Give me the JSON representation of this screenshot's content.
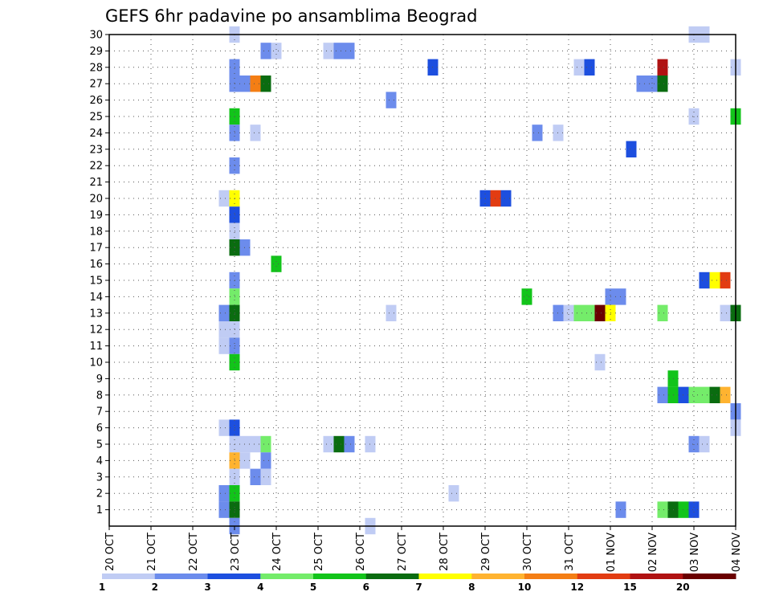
{
  "chart_data": {
    "type": "heatmap",
    "title": "GEFS 6hr padavine po ansamblima Beograd",
    "x_tick_labels": [
      "20 OCT",
      "21 OCT",
      "22 OCT",
      "23 OCT",
      "24 OCT",
      "25 OCT",
      "26 OCT",
      "27 OCT",
      "28 OCT",
      "29 OCT",
      "30 OCT",
      "31 OCT",
      "01 NOV",
      "02 NOV",
      "03 NOV",
      "04 NOV"
    ],
    "y_tick_labels": [
      "1",
      "2",
      "3",
      "4",
      "5",
      "6",
      "7",
      "8",
      "9",
      "10",
      "11",
      "12",
      "13",
      "14",
      "15",
      "16",
      "17",
      "18",
      "19",
      "20",
      "21",
      "22",
      "23",
      "24",
      "25",
      "26",
      "27",
      "28",
      "29",
      "30"
    ],
    "x_unit": "day index from 20 OCT 00Z, 6-hour steps",
    "ylim": [
      0,
      30
    ],
    "xlim": [
      0,
      15
    ],
    "grid": true,
    "colorbar": {
      "position": "bottom",
      "colors": [
        "#c0ccf4",
        "#6c8cec",
        "#1d4fdf",
        "#74ec6a",
        "#12c41a",
        "#0a6c10",
        "#ffff00",
        "#ffb330",
        "#f47e14",
        "#e23c12",
        "#b01212",
        "#6a0000"
      ],
      "tick_labels": [
        "1",
        "2",
        "3",
        "4",
        "5",
        "6",
        "7",
        "8",
        "10",
        "12",
        "15",
        "20"
      ]
    },
    "cells": [
      {
        "member": 30,
        "day": 3.0,
        "level": 1
      },
      {
        "member": 30,
        "day": 14.0,
        "level": 1
      },
      {
        "member": 30,
        "day": 14.25,
        "level": 1
      },
      {
        "member": 29,
        "day": 3.75,
        "level": 2
      },
      {
        "member": 29,
        "day": 4.0,
        "level": 1
      },
      {
        "member": 29,
        "day": 5.25,
        "level": 1
      },
      {
        "member": 29,
        "day": 5.5,
        "level": 2
      },
      {
        "member": 29,
        "day": 5.75,
        "level": 2
      },
      {
        "member": 28,
        "day": 3.0,
        "level": 2
      },
      {
        "member": 28,
        "day": 7.75,
        "level": 3
      },
      {
        "member": 28,
        "day": 11.25,
        "level": 1
      },
      {
        "member": 28,
        "day": 11.5,
        "level": 3
      },
      {
        "member": 28,
        "day": 13.25,
        "level": 11
      },
      {
        "member": 28,
        "day": 15.0,
        "level": 1
      },
      {
        "member": 27,
        "day": 3.0,
        "level": 2
      },
      {
        "member": 27,
        "day": 3.25,
        "level": 2
      },
      {
        "member": 27,
        "day": 3.5,
        "level": 9
      },
      {
        "member": 27,
        "day": 3.75,
        "level": 6
      },
      {
        "member": 27,
        "day": 12.75,
        "level": 2
      },
      {
        "member": 27,
        "day": 13.0,
        "level": 2
      },
      {
        "member": 27,
        "day": 13.25,
        "level": 6
      },
      {
        "member": 26,
        "day": 6.75,
        "level": 2
      },
      {
        "member": 25,
        "day": 3.0,
        "level": 5
      },
      {
        "member": 25,
        "day": 14.0,
        "level": 1
      },
      {
        "member": 25,
        "day": 15.0,
        "level": 5
      },
      {
        "member": 24,
        "day": 3.0,
        "level": 2
      },
      {
        "member": 24,
        "day": 3.5,
        "level": 1
      },
      {
        "member": 24,
        "day": 10.25,
        "level": 2
      },
      {
        "member": 24,
        "day": 10.75,
        "level": 1
      },
      {
        "member": 23,
        "day": 12.5,
        "level": 3
      },
      {
        "member": 22,
        "day": 3.0,
        "level": 2
      },
      {
        "member": 20,
        "day": 2.75,
        "level": 1
      },
      {
        "member": 20,
        "day": 3.0,
        "level": 7
      },
      {
        "member": 20,
        "day": 9.0,
        "level": 3
      },
      {
        "member": 20,
        "day": 9.25,
        "level": 10
      },
      {
        "member": 20,
        "day": 9.5,
        "level": 3
      },
      {
        "member": 19,
        "day": 3.0,
        "level": 3
      },
      {
        "member": 18,
        "day": 3.0,
        "level": 1
      },
      {
        "member": 17,
        "day": 3.0,
        "level": 6
      },
      {
        "member": 17,
        "day": 3.25,
        "level": 2
      },
      {
        "member": 16,
        "day": 4.0,
        "level": 5
      },
      {
        "member": 15,
        "day": 3.0,
        "level": 2
      },
      {
        "member": 15,
        "day": 14.25,
        "level": 3
      },
      {
        "member": 15,
        "day": 14.5,
        "level": 7
      },
      {
        "member": 15,
        "day": 14.75,
        "level": 10
      },
      {
        "member": 14,
        "day": 3.0,
        "level": 4
      },
      {
        "member": 14,
        "day": 10.0,
        "level": 5
      },
      {
        "member": 14,
        "day": 12.0,
        "level": 2
      },
      {
        "member": 14,
        "day": 12.25,
        "level": 2
      },
      {
        "member": 13,
        "day": 2.75,
        "level": 2
      },
      {
        "member": 13,
        "day": 3.0,
        "level": 6
      },
      {
        "member": 13,
        "day": 6.75,
        "level": 1
      },
      {
        "member": 13,
        "day": 10.75,
        "level": 2
      },
      {
        "member": 13,
        "day": 11.0,
        "level": 1
      },
      {
        "member": 13,
        "day": 11.25,
        "level": 4
      },
      {
        "member": 13,
        "day": 11.5,
        "level": 4
      },
      {
        "member": 13,
        "day": 11.75,
        "level": 12
      },
      {
        "member": 13,
        "day": 12.0,
        "level": 7
      },
      {
        "member": 13,
        "day": 13.25,
        "level": 4
      },
      {
        "member": 13,
        "day": 14.75,
        "level": 1
      },
      {
        "member": 13,
        "day": 15.0,
        "level": 6
      },
      {
        "member": 12,
        "day": 2.75,
        "level": 1
      },
      {
        "member": 12,
        "day": 3.0,
        "level": 1
      },
      {
        "member": 11,
        "day": 2.75,
        "level": 1
      },
      {
        "member": 11,
        "day": 3.0,
        "level": 2
      },
      {
        "member": 10,
        "day": 3.0,
        "level": 5
      },
      {
        "member": 10,
        "day": 11.75,
        "level": 1
      },
      {
        "member": 9,
        "day": 13.5,
        "level": 5
      },
      {
        "member": 8,
        "day": 13.25,
        "level": 2
      },
      {
        "member": 8,
        "day": 13.5,
        "level": 5
      },
      {
        "member": 8,
        "day": 13.75,
        "level": 3
      },
      {
        "member": 8,
        "day": 14.0,
        "level": 4
      },
      {
        "member": 8,
        "day": 14.25,
        "level": 4
      },
      {
        "member": 8,
        "day": 14.5,
        "level": 6
      },
      {
        "member": 8,
        "day": 14.75,
        "level": 8
      },
      {
        "member": 7,
        "day": 15.0,
        "level": 2
      },
      {
        "member": 6,
        "day": 2.75,
        "level": 1
      },
      {
        "member": 6,
        "day": 3.0,
        "level": 3
      },
      {
        "member": 6,
        "day": 15.0,
        "level": 1
      },
      {
        "member": 5,
        "day": 3.0,
        "level": 1
      },
      {
        "member": 5,
        "day": 3.25,
        "level": 1
      },
      {
        "member": 5,
        "day": 3.5,
        "level": 1
      },
      {
        "member": 5,
        "day": 3.75,
        "level": 4
      },
      {
        "member": 5,
        "day": 5.25,
        "level": 1
      },
      {
        "member": 5,
        "day": 5.5,
        "level": 6
      },
      {
        "member": 5,
        "day": 5.75,
        "level": 2
      },
      {
        "member": 5,
        "day": 6.25,
        "level": 1
      },
      {
        "member": 5,
        "day": 14.0,
        "level": 2
      },
      {
        "member": 5,
        "day": 14.25,
        "level": 1
      },
      {
        "member": 4,
        "day": 3.0,
        "level": 8
      },
      {
        "member": 4,
        "day": 3.25,
        "level": 1
      },
      {
        "member": 4,
        "day": 3.75,
        "level": 2
      },
      {
        "member": 3,
        "day": 3.0,
        "level": 1
      },
      {
        "member": 3,
        "day": 3.5,
        "level": 2
      },
      {
        "member": 3,
        "day": 3.75,
        "level": 1
      },
      {
        "member": 2,
        "day": 2.75,
        "level": 2
      },
      {
        "member": 2,
        "day": 3.0,
        "level": 5
      },
      {
        "member": 2,
        "day": 8.25,
        "level": 1
      },
      {
        "member": 1,
        "day": 2.75,
        "level": 2
      },
      {
        "member": 1,
        "day": 3.0,
        "level": 6
      },
      {
        "member": 1,
        "day": 12.25,
        "level": 2
      },
      {
        "member": 1,
        "day": 13.25,
        "level": 4
      },
      {
        "member": 1,
        "day": 13.5,
        "level": 6
      },
      {
        "member": 1,
        "day": 13.75,
        "level": 5
      },
      {
        "member": 1,
        "day": 14.0,
        "level": 3
      },
      {
        "member": 0,
        "day": 3.0,
        "level": 2
      },
      {
        "member": 0,
        "day": 6.25,
        "level": 1
      }
    ]
  }
}
